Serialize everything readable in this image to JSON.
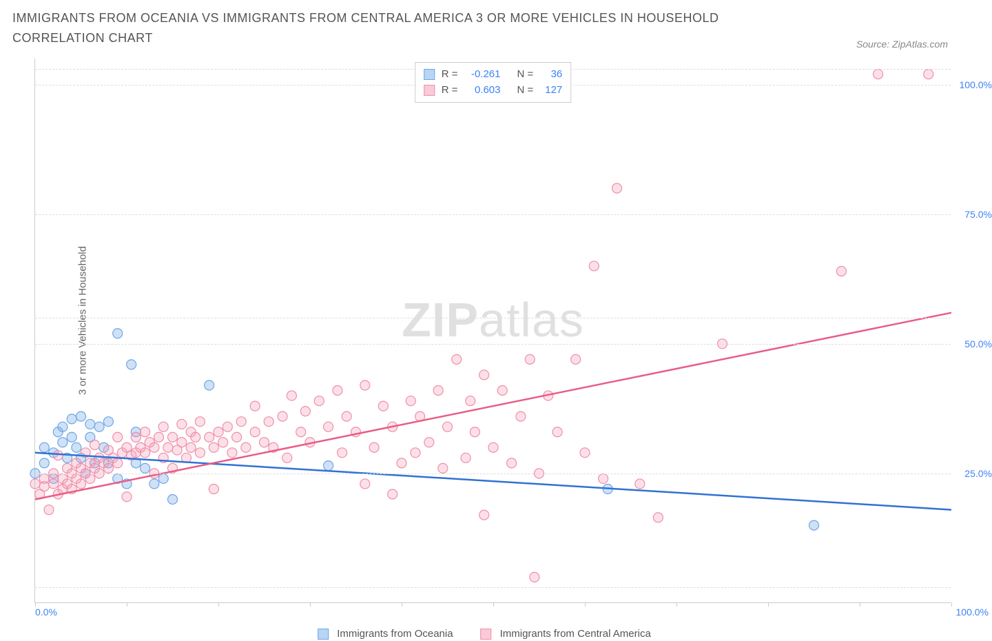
{
  "title": "IMMIGRANTS FROM OCEANIA VS IMMIGRANTS FROM CENTRAL AMERICA 3 OR MORE VEHICLES IN HOUSEHOLD CORRELATION CHART",
  "source_label": "Source: ZipAtlas.com",
  "watermark_zip": "ZIP",
  "watermark_atlas": "atlas",
  "y_axis_label": "3 or more Vehicles in Household",
  "x_axis": {
    "min": 0,
    "max": 100,
    "label_min": "0.0%",
    "label_max": "100.0%",
    "color": "#3b82f6"
  },
  "y_axis": {
    "min": 0,
    "max": 105,
    "ticks": [
      {
        "v": 25,
        "label": "25.0%"
      },
      {
        "v": 50,
        "label": "50.0%"
      },
      {
        "v": 75,
        "label": "75.0%"
      },
      {
        "v": 100,
        "label": "100.0%"
      }
    ],
    "tick_color": "#3b82f6"
  },
  "gridlines_y": [
    3,
    25,
    50,
    55,
    75,
    100,
    103
  ],
  "x_tick_marks": [
    0,
    10,
    20,
    30,
    40,
    50,
    60,
    70,
    80,
    90,
    100
  ],
  "legend_stats": {
    "r_label": "R =",
    "n_label": "N =",
    "value_color": "#3b82f6",
    "rows": [
      {
        "swatch_fill": "#b9d4f4",
        "swatch_border": "#6aa7e8",
        "r": "-0.261",
        "n": "36"
      },
      {
        "swatch_fill": "#f9cbd8",
        "swatch_border": "#f08da9",
        "r": "0.603",
        "n": "127"
      }
    ]
  },
  "legend_bottom": [
    {
      "swatch_fill": "#b9d4f4",
      "swatch_border": "#6aa7e8",
      "label": "Immigrants from Oceania"
    },
    {
      "swatch_fill": "#f9cbd8",
      "swatch_border": "#f08da9",
      "label": "Immigrants from Central America"
    }
  ],
  "series": [
    {
      "name": "oceania",
      "marker_fill": "rgba(120,170,230,0.35)",
      "marker_stroke": "#6aa7e8",
      "marker_radius": 7,
      "trend": {
        "x1": 0,
        "y1": 29,
        "x2": 100,
        "y2": 18,
        "color": "#2f72d4",
        "width": 2.5
      },
      "points": [
        [
          0,
          25
        ],
        [
          1,
          27
        ],
        [
          1,
          30
        ],
        [
          2,
          29
        ],
        [
          2,
          24
        ],
        [
          2.5,
          33
        ],
        [
          3,
          34
        ],
        [
          3,
          31
        ],
        [
          3.5,
          28
        ],
        [
          4,
          35.5
        ],
        [
          4,
          32
        ],
        [
          4.5,
          30
        ],
        [
          5,
          36
        ],
        [
          5,
          28
        ],
        [
          5.5,
          25
        ],
        [
          6,
          34.5
        ],
        [
          6,
          32
        ],
        [
          6.5,
          27
        ],
        [
          7,
          34
        ],
        [
          7.5,
          30
        ],
        [
          8,
          27
        ],
        [
          8,
          35
        ],
        [
          9,
          52
        ],
        [
          9,
          24
        ],
        [
          10,
          23
        ],
        [
          10.5,
          46
        ],
        [
          11,
          27
        ],
        [
          11,
          33
        ],
        [
          12,
          26
        ],
        [
          13,
          23
        ],
        [
          14,
          24
        ],
        [
          15,
          20
        ],
        [
          19,
          42
        ],
        [
          32,
          26.5
        ],
        [
          62.5,
          22
        ],
        [
          85,
          15
        ]
      ]
    },
    {
      "name": "central_america",
      "marker_fill": "rgba(245,160,185,0.32)",
      "marker_stroke": "#f08da9",
      "marker_radius": 7,
      "trend": {
        "x1": 0,
        "y1": 20,
        "x2": 100,
        "y2": 56,
        "color": "#e85d85",
        "width": 2.5
      },
      "points": [
        [
          0,
          23
        ],
        [
          0.5,
          21
        ],
        [
          1,
          24
        ],
        [
          1,
          22.5
        ],
        [
          1.5,
          18
        ],
        [
          2,
          23
        ],
        [
          2,
          25
        ],
        [
          2.5,
          21
        ],
        [
          2.5,
          28.5
        ],
        [
          3,
          22
        ],
        [
          3,
          24
        ],
        [
          3.5,
          26
        ],
        [
          3.5,
          23
        ],
        [
          4,
          22
        ],
        [
          4,
          25
        ],
        [
          4.5,
          24
        ],
        [
          4.5,
          27
        ],
        [
          5,
          23
        ],
        [
          5,
          26
        ],
        [
          5.5,
          25
        ],
        [
          5.5,
          29
        ],
        [
          6,
          24
        ],
        [
          6,
          27
        ],
        [
          6.5,
          26
        ],
        [
          6.5,
          30.5
        ],
        [
          7,
          25
        ],
        [
          7,
          28
        ],
        [
          7.5,
          27
        ],
        [
          8,
          26
        ],
        [
          8,
          29.5
        ],
        [
          8.5,
          28
        ],
        [
          9,
          27
        ],
        [
          9,
          32
        ],
        [
          9.5,
          29
        ],
        [
          10,
          20.5
        ],
        [
          10,
          30
        ],
        [
          10.5,
          28.5
        ],
        [
          11,
          29
        ],
        [
          11,
          32
        ],
        [
          11.5,
          30
        ],
        [
          12,
          29
        ],
        [
          12,
          33
        ],
        [
          12.5,
          31
        ],
        [
          13,
          25
        ],
        [
          13,
          30
        ],
        [
          13.5,
          32
        ],
        [
          14,
          28
        ],
        [
          14,
          34
        ],
        [
          14.5,
          30
        ],
        [
          15,
          26
        ],
        [
          15,
          32
        ],
        [
          15.5,
          29.5
        ],
        [
          16,
          31
        ],
        [
          16,
          34.5
        ],
        [
          16.5,
          28
        ],
        [
          17,
          30
        ],
        [
          17,
          33
        ],
        [
          17.5,
          32
        ],
        [
          18,
          29
        ],
        [
          18,
          35
        ],
        [
          19,
          32
        ],
        [
          19.5,
          30
        ],
        [
          19.5,
          22
        ],
        [
          20,
          33
        ],
        [
          20.5,
          31
        ],
        [
          21,
          34
        ],
        [
          21.5,
          29
        ],
        [
          22,
          32
        ],
        [
          22.5,
          35
        ],
        [
          23,
          30
        ],
        [
          24,
          33
        ],
        [
          24,
          38
        ],
        [
          25,
          31
        ],
        [
          25.5,
          35
        ],
        [
          26,
          30
        ],
        [
          27,
          36
        ],
        [
          27.5,
          28
        ],
        [
          28,
          40
        ],
        [
          29,
          33
        ],
        [
          29.5,
          37
        ],
        [
          30,
          31
        ],
        [
          31,
          39
        ],
        [
          32,
          34
        ],
        [
          33,
          41
        ],
        [
          33.5,
          29
        ],
        [
          34,
          36
        ],
        [
          35,
          33
        ],
        [
          36,
          42
        ],
        [
          36,
          23
        ],
        [
          37,
          30
        ],
        [
          38,
          38
        ],
        [
          39,
          34
        ],
        [
          39,
          21
        ],
        [
          40,
          27
        ],
        [
          41,
          39
        ],
        [
          41.5,
          29
        ],
        [
          42,
          36
        ],
        [
          43,
          31
        ],
        [
          44,
          41
        ],
        [
          44.5,
          26
        ],
        [
          45,
          34
        ],
        [
          46,
          47
        ],
        [
          47,
          28
        ],
        [
          47.5,
          39
        ],
        [
          48,
          33
        ],
        [
          49,
          44
        ],
        [
          49,
          17
        ],
        [
          50,
          30
        ],
        [
          51,
          41
        ],
        [
          52,
          27
        ],
        [
          53,
          36
        ],
        [
          54,
          47
        ],
        [
          54.5,
          5
        ],
        [
          55,
          25
        ],
        [
          56,
          40
        ],
        [
          57,
          33
        ],
        [
          59,
          47
        ],
        [
          60,
          29
        ],
        [
          61,
          65
        ],
        [
          62,
          24
        ],
        [
          63.5,
          80
        ],
        [
          66,
          23
        ],
        [
          68,
          16.5
        ],
        [
          75,
          50
        ],
        [
          88,
          64
        ],
        [
          92,
          102
        ],
        [
          97.5,
          102
        ]
      ]
    }
  ]
}
